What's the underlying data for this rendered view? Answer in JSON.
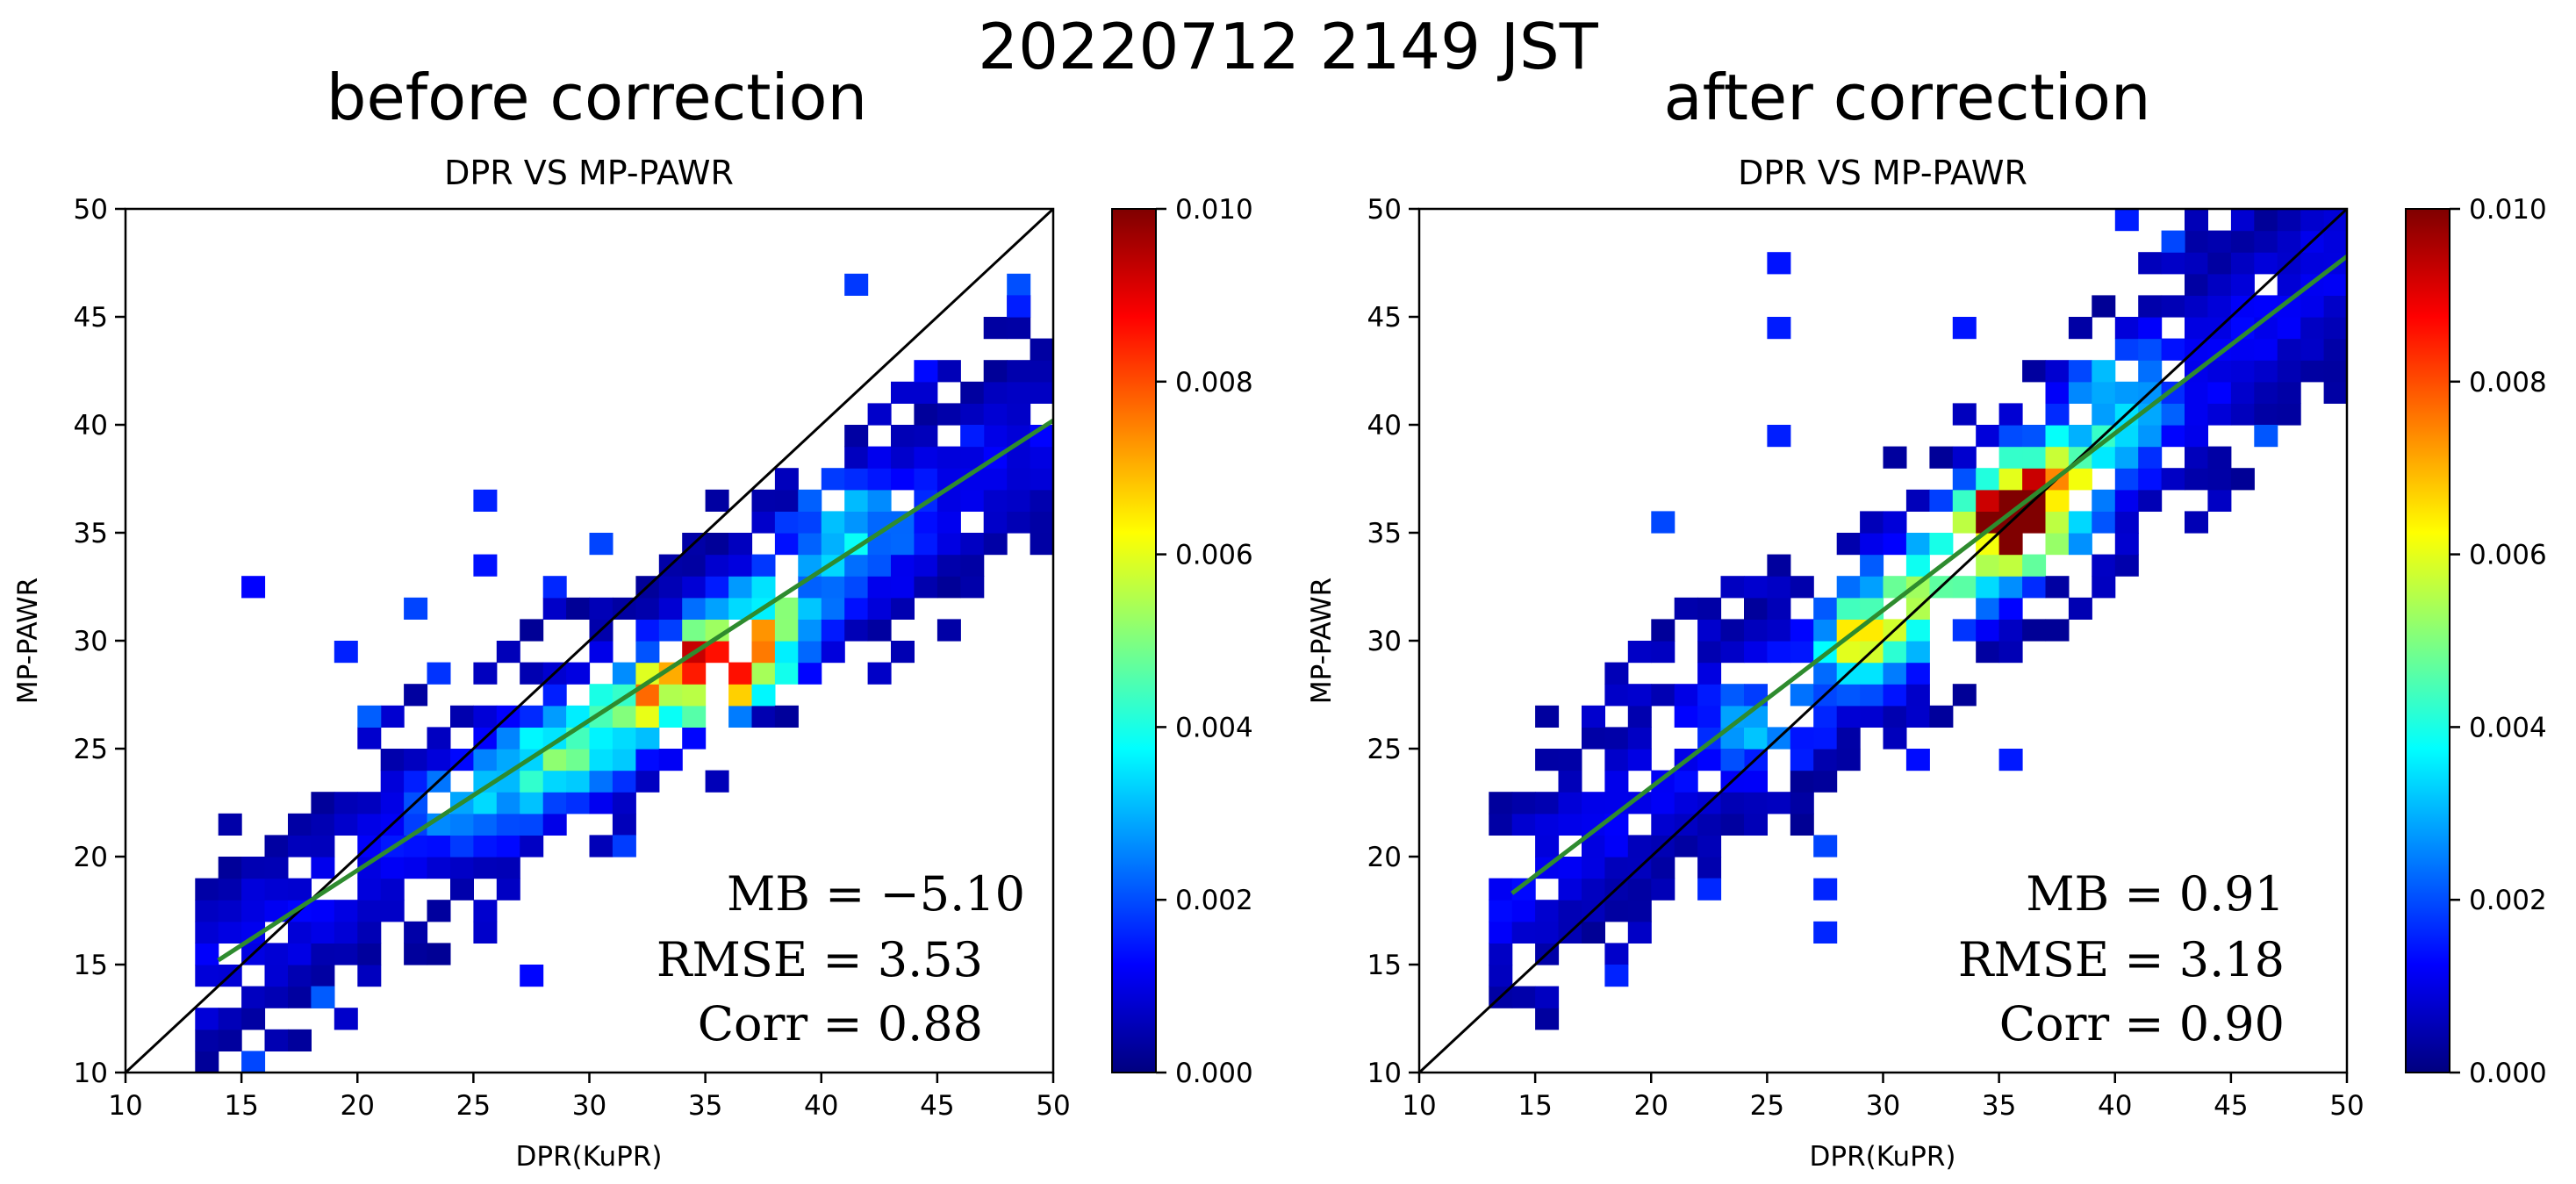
{
  "figure": {
    "title": "20220712 2149 JST"
  },
  "chart_data": [
    {
      "type": "heatmap",
      "heading": "before correction",
      "title": "DPR VS MP-PAWR",
      "xlabel": "DPR(KuPR)",
      "ylabel": "MP-PAWR",
      "xlim": [
        10,
        50
      ],
      "ylim": [
        10,
        50
      ],
      "xticks": [
        "10",
        "15",
        "20",
        "25",
        "30",
        "35",
        "40",
        "45",
        "50"
      ],
      "yticks": [
        "10",
        "15",
        "20",
        "25",
        "30",
        "35",
        "40",
        "45",
        "50"
      ],
      "colorbar": {
        "range": [
          0.0,
          0.01
        ],
        "ticks": [
          "0.000",
          "0.002",
          "0.004",
          "0.006",
          "0.008",
          "0.010"
        ],
        "colormap": "jet"
      },
      "bin_size": 1,
      "lines": [
        {
          "name": "1:1",
          "color": "#000000",
          "points": [
            [
              10,
              10
            ],
            [
              50,
              50
            ]
          ]
        },
        {
          "name": "fit",
          "color": "#2e8b2e",
          "points": [
            [
              14,
              15.2
            ],
            [
              50,
              40.2
            ]
          ]
        }
      ],
      "stats": {
        "mb": "MB = −5.10",
        "rmse": "RMSE = 3.53",
        "corr": "Corr = 0.88"
      },
      "density_model": {
        "ridge_slope": 0.69,
        "ridge_intercept": 5.5,
        "x_range": [
          13.5,
          50
        ],
        "spread": 2.6,
        "scatter_fraction": 0.16,
        "peaks": [
          {
            "x": 36,
            "y": 29,
            "value": 0.0098,
            "sx": 1.5,
            "sy": 1.3
          },
          {
            "x": 33,
            "y": 27.5,
            "value": 0.0048,
            "sx": 1.6,
            "sy": 1.2
          },
          {
            "x": 29.5,
            "y": 25,
            "value": 0.0036,
            "sx": 2.0,
            "sy": 1.5
          },
          {
            "x": 25.5,
            "y": 22.5,
            "value": 0.0022,
            "sx": 2.0,
            "sy": 1.4
          },
          {
            "x": 41,
            "y": 35.5,
            "value": 0.0026,
            "sx": 1.8,
            "sy": 2.0
          },
          {
            "x": 38,
            "y": 31,
            "value": 0.003,
            "sx": 1.5,
            "sy": 1.5
          }
        ],
        "outliers": [
          [
            15,
            32
          ],
          [
            15,
            10
          ],
          [
            19,
            29
          ],
          [
            25,
            36
          ],
          [
            25,
            33
          ],
          [
            41,
            46
          ],
          [
            48,
            46
          ],
          [
            48,
            45
          ],
          [
            28,
            32
          ],
          [
            30,
            34
          ],
          [
            18,
            13
          ],
          [
            27,
            14
          ],
          [
            31,
            20
          ],
          [
            22,
            31
          ],
          [
            44,
            42
          ],
          [
            46,
            39
          ],
          [
            20,
            26
          ],
          [
            23,
            28
          ]
        ]
      }
    },
    {
      "type": "heatmap",
      "heading": "after correction",
      "title": "DPR VS MP-PAWR",
      "xlabel": "DPR(KuPR)",
      "ylabel": "MP-PAWR",
      "xlim": [
        10,
        50
      ],
      "ylim": [
        10,
        50
      ],
      "xticks": [
        "10",
        "15",
        "20",
        "25",
        "30",
        "35",
        "40",
        "45",
        "50"
      ],
      "yticks": [
        "10",
        "15",
        "20",
        "25",
        "30",
        "35",
        "40",
        "45",
        "50"
      ],
      "colorbar": {
        "range": [
          0.0,
          0.01
        ],
        "ticks": [
          "0.000",
          "0.002",
          "0.004",
          "0.006",
          "0.008",
          "0.010"
        ],
        "colormap": "jet"
      },
      "bin_size": 1,
      "lines": [
        {
          "name": "1:1",
          "color": "#000000",
          "points": [
            [
              10,
              10
            ],
            [
              50,
              50
            ]
          ]
        },
        {
          "name": "fit",
          "color": "#2e8b2e",
          "points": [
            [
              14,
              18.3
            ],
            [
              50,
              47.8
            ]
          ]
        }
      ],
      "stats": {
        "mb": "MB = 0.91",
        "rmse": "RMSE = 3.18",
        "corr": "Corr = 0.90"
      },
      "density_model": {
        "ridge_slope": 0.82,
        "ridge_intercept": 6.8,
        "x_range": [
          13.5,
          50
        ],
        "spread": 2.8,
        "scatter_fraction": 0.17,
        "peaks": [
          {
            "x": 35.5,
            "y": 35.5,
            "value": 0.0096,
            "sx": 1.4,
            "sy": 1.4
          },
          {
            "x": 37,
            "y": 37,
            "value": 0.005,
            "sx": 1.6,
            "sy": 1.6
          },
          {
            "x": 29.5,
            "y": 30,
            "value": 0.0058,
            "sx": 1.4,
            "sy": 1.4
          },
          {
            "x": 32.5,
            "y": 32.5,
            "value": 0.0036,
            "sx": 1.8,
            "sy": 1.6
          },
          {
            "x": 40,
            "y": 41,
            "value": 0.0026,
            "sx": 1.8,
            "sy": 2.2
          },
          {
            "x": 25,
            "y": 26,
            "value": 0.0018,
            "sx": 2.0,
            "sy": 1.6
          }
        ],
        "outliers": [
          [
            25,
            47
          ],
          [
            25,
            44
          ],
          [
            27,
            20
          ],
          [
            27,
            18
          ],
          [
            27,
            16
          ],
          [
            18,
            14
          ],
          [
            23,
            24
          ],
          [
            35,
            24
          ],
          [
            46,
            39
          ],
          [
            40,
            49
          ],
          [
            42,
            48
          ],
          [
            20,
            35
          ],
          [
            25,
            39
          ],
          [
            31,
            24
          ],
          [
            33,
            44
          ],
          [
            22,
            18
          ]
        ]
      }
    }
  ]
}
